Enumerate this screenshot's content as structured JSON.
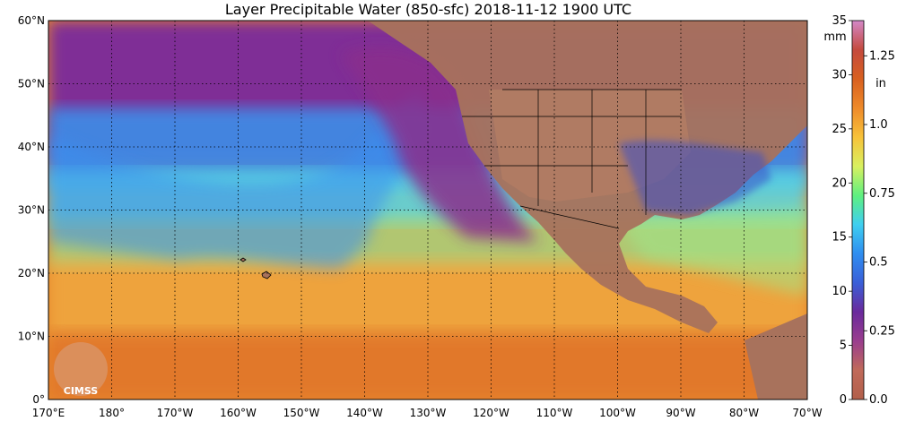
{
  "title": "Layer Precipitable Water (850-sfc)  2018-11-12 1900 UTC",
  "map": {
    "lat_labels": [
      "60°N",
      "50°N",
      "40°N",
      "30°N",
      "20°N",
      "10°N",
      "0°"
    ],
    "lon_labels": [
      "170°E",
      "180°",
      "170°W",
      "160°W",
      "150°W",
      "140°W",
      "130°W",
      "120°W",
      "110°W",
      "100°W",
      "90°W",
      "80°W",
      "70°W"
    ],
    "logo_text": "CIMSS"
  },
  "colorbar": {
    "mm_unit": "mm",
    "in_unit": "in",
    "mm_ticks": [
      "35",
      "30",
      "25",
      "20",
      "15",
      "10",
      "5",
      "0"
    ],
    "in_ticks": [
      "1.25",
      "1.0",
      "0.75",
      "0.5",
      "0.25",
      "0.0"
    ],
    "colors": [
      "#b25f4a",
      "#c06a5a",
      "#9a3e8e",
      "#6a2a9c",
      "#3a5fd8",
      "#2f8ef0",
      "#3fcff0",
      "#5ef080",
      "#d8f060",
      "#f7c23a",
      "#ee8a2a",
      "#d86020",
      "#c44a3e",
      "#d488c8"
    ]
  },
  "colors": {
    "land": "#b07860",
    "ocean_high": "#e8882c",
    "moist_plume": "#3fa8f0",
    "dry_air": "#7a2e9a"
  }
}
